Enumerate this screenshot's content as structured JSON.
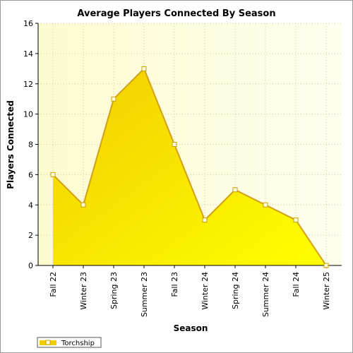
{
  "chart_data": {
    "type": "area",
    "title": "Average Players Connected By Season",
    "xlabel": "Season",
    "ylabel": "Players Connected",
    "categories": [
      "Fall 22",
      "Winter 23",
      "Spring 23",
      "Summer 23",
      "Fall 23",
      "Winter 24",
      "Spring 24",
      "Summer 24",
      "Fall 24",
      "Winter 25"
    ],
    "series": [
      {
        "name": "Torchship",
        "values": [
          6,
          4,
          11,
          13,
          8,
          3,
          5,
          4,
          3,
          0
        ]
      }
    ],
    "ylim": [
      0,
      16
    ],
    "yticks": [
      0,
      2,
      4,
      6,
      8,
      10,
      12,
      14,
      16
    ],
    "grid": true,
    "legend": "bottom-left",
    "colors": {
      "fill_top": "#f2cc00",
      "fill_bottom": "#ffff00",
      "line": "#d4a017",
      "marker_fill": "#fffde0",
      "marker_stroke": "#c8a000",
      "plot_bg_left": "#fdfbd0",
      "plot_bg_right": "#ffffee",
      "grid": "#c8c8a0"
    }
  }
}
